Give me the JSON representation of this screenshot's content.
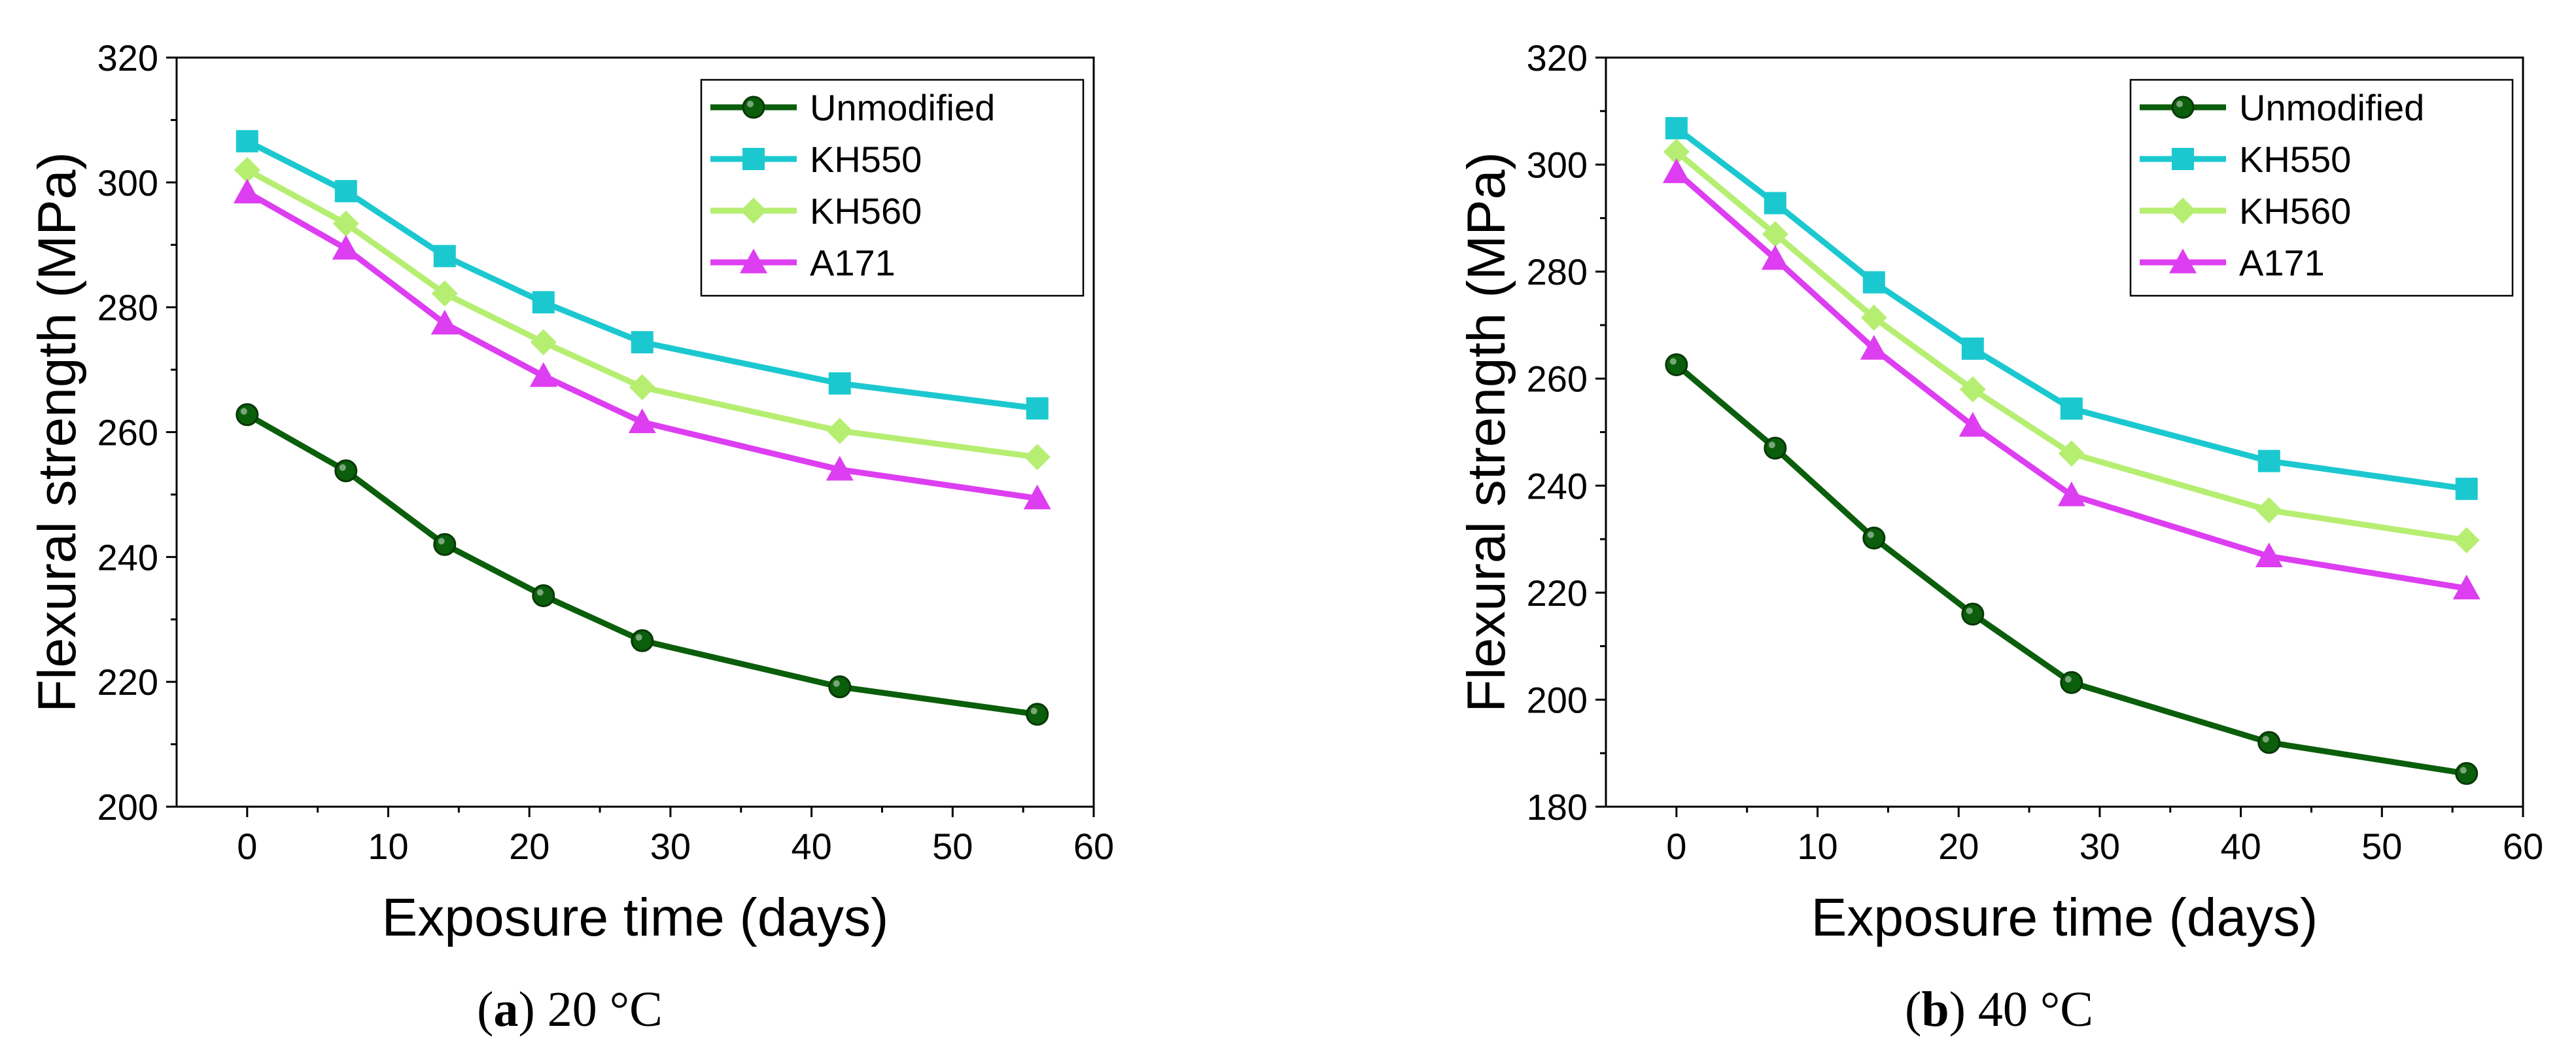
{
  "chart_data": [
    {
      "type": "line",
      "caption": {
        "letter": "a",
        "rest": " 20 °C"
      },
      "xlabel": "Exposure time (days)",
      "ylabel": "Flexural strength (MPa)",
      "xlim": [
        -5,
        60
      ],
      "ylim": [
        200,
        320
      ],
      "xticks": [
        0,
        10,
        20,
        30,
        40,
        50,
        60
      ],
      "yticks": [
        200,
        220,
        240,
        260,
        280,
        300,
        320
      ],
      "x": [
        0,
        7,
        14,
        21,
        28,
        42,
        56
      ],
      "legend_position": "top-right",
      "grid": false,
      "series": [
        {
          "name": "Unmodified",
          "color": "#0b5e0b",
          "marker": "circle",
          "values": [
            262.8,
            253.8,
            242.0,
            233.8,
            226.6,
            219.2,
            214.8
          ]
        },
        {
          "name": "KH550",
          "color": "#1cc8d0",
          "marker": "square",
          "values": [
            306.6,
            298.6,
            288.2,
            280.8,
            274.4,
            267.8,
            263.8
          ]
        },
        {
          "name": "KH560",
          "color": "#b6ee72",
          "marker": "diamond",
          "values": [
            302.0,
            293.4,
            282.2,
            274.4,
            267.2,
            260.2,
            256.0
          ]
        },
        {
          "name": "A171",
          "color": "#dd3ef1",
          "marker": "triangle",
          "values": [
            298.4,
            289.4,
            277.4,
            269.0,
            261.6,
            254.0,
            249.4
          ]
        }
      ]
    },
    {
      "type": "line",
      "caption": {
        "letter": "b",
        "rest": " 40 °C"
      },
      "xlabel": "Exposure time (days)",
      "ylabel": "Flexural strength (MPa)",
      "xlim": [
        -5,
        60
      ],
      "ylim": [
        180,
        320
      ],
      "xticks": [
        0,
        10,
        20,
        30,
        40,
        50,
        60
      ],
      "yticks": [
        180,
        200,
        220,
        240,
        260,
        280,
        300,
        320
      ],
      "x": [
        0,
        7,
        14,
        21,
        28,
        42,
        56
      ],
      "legend_position": "top-right",
      "grid": false,
      "series": [
        {
          "name": "Unmodified",
          "color": "#0b5e0b",
          "marker": "circle",
          "values": [
            262.6,
            247.0,
            230.2,
            216.0,
            203.2,
            192.0,
            186.2
          ]
        },
        {
          "name": "KH550",
          "color": "#1cc8d0",
          "marker": "square",
          "values": [
            306.8,
            292.8,
            278.0,
            265.6,
            254.4,
            244.6,
            239.4
          ]
        },
        {
          "name": "KH560",
          "color": "#b6ee72",
          "marker": "diamond",
          "values": [
            302.4,
            287.0,
            271.4,
            258.0,
            246.0,
            235.4,
            229.8
          ]
        },
        {
          "name": "A171",
          "color": "#dd3ef1",
          "marker": "triangle",
          "values": [
            298.6,
            282.4,
            265.6,
            251.2,
            238.2,
            226.8,
            220.8
          ]
        }
      ]
    }
  ]
}
